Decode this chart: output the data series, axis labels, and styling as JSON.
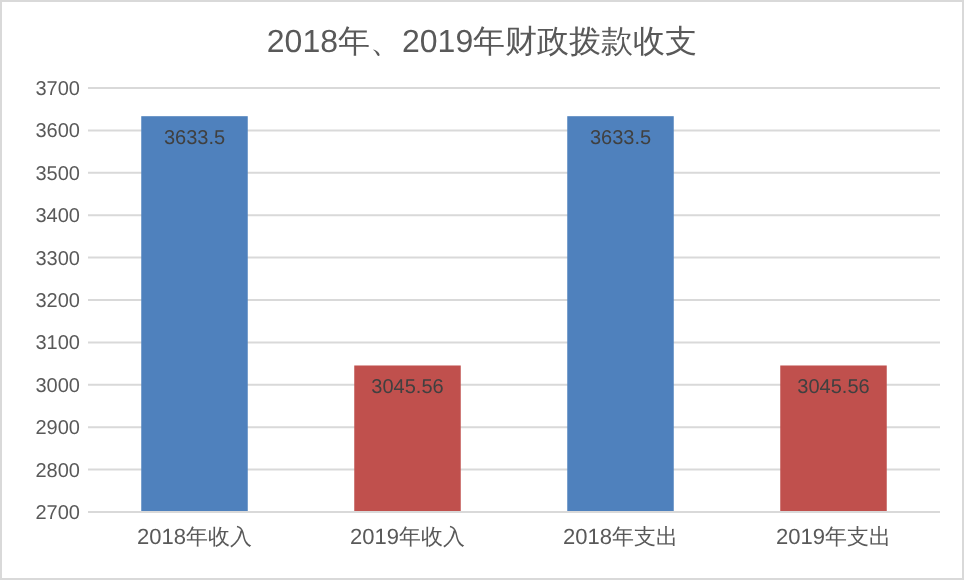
{
  "chart_data": {
    "type": "bar",
    "title": "2018年、2019年财政拨款收支",
    "categories": [
      "2018年收入",
      "2019年收入",
      "2018年支出",
      "2019年支出"
    ],
    "values": [
      3633.5,
      3045.56,
      3633.5,
      3045.56
    ],
    "colors": [
      "#4f81bd",
      "#c0504d",
      "#4f81bd",
      "#c0504d"
    ],
    "ylim": [
      2700,
      3700
    ],
    "yticks": [
      2700,
      2800,
      2900,
      3000,
      3100,
      3200,
      3300,
      3400,
      3500,
      3600,
      3700
    ],
    "grid": "y",
    "data_labels": true
  }
}
